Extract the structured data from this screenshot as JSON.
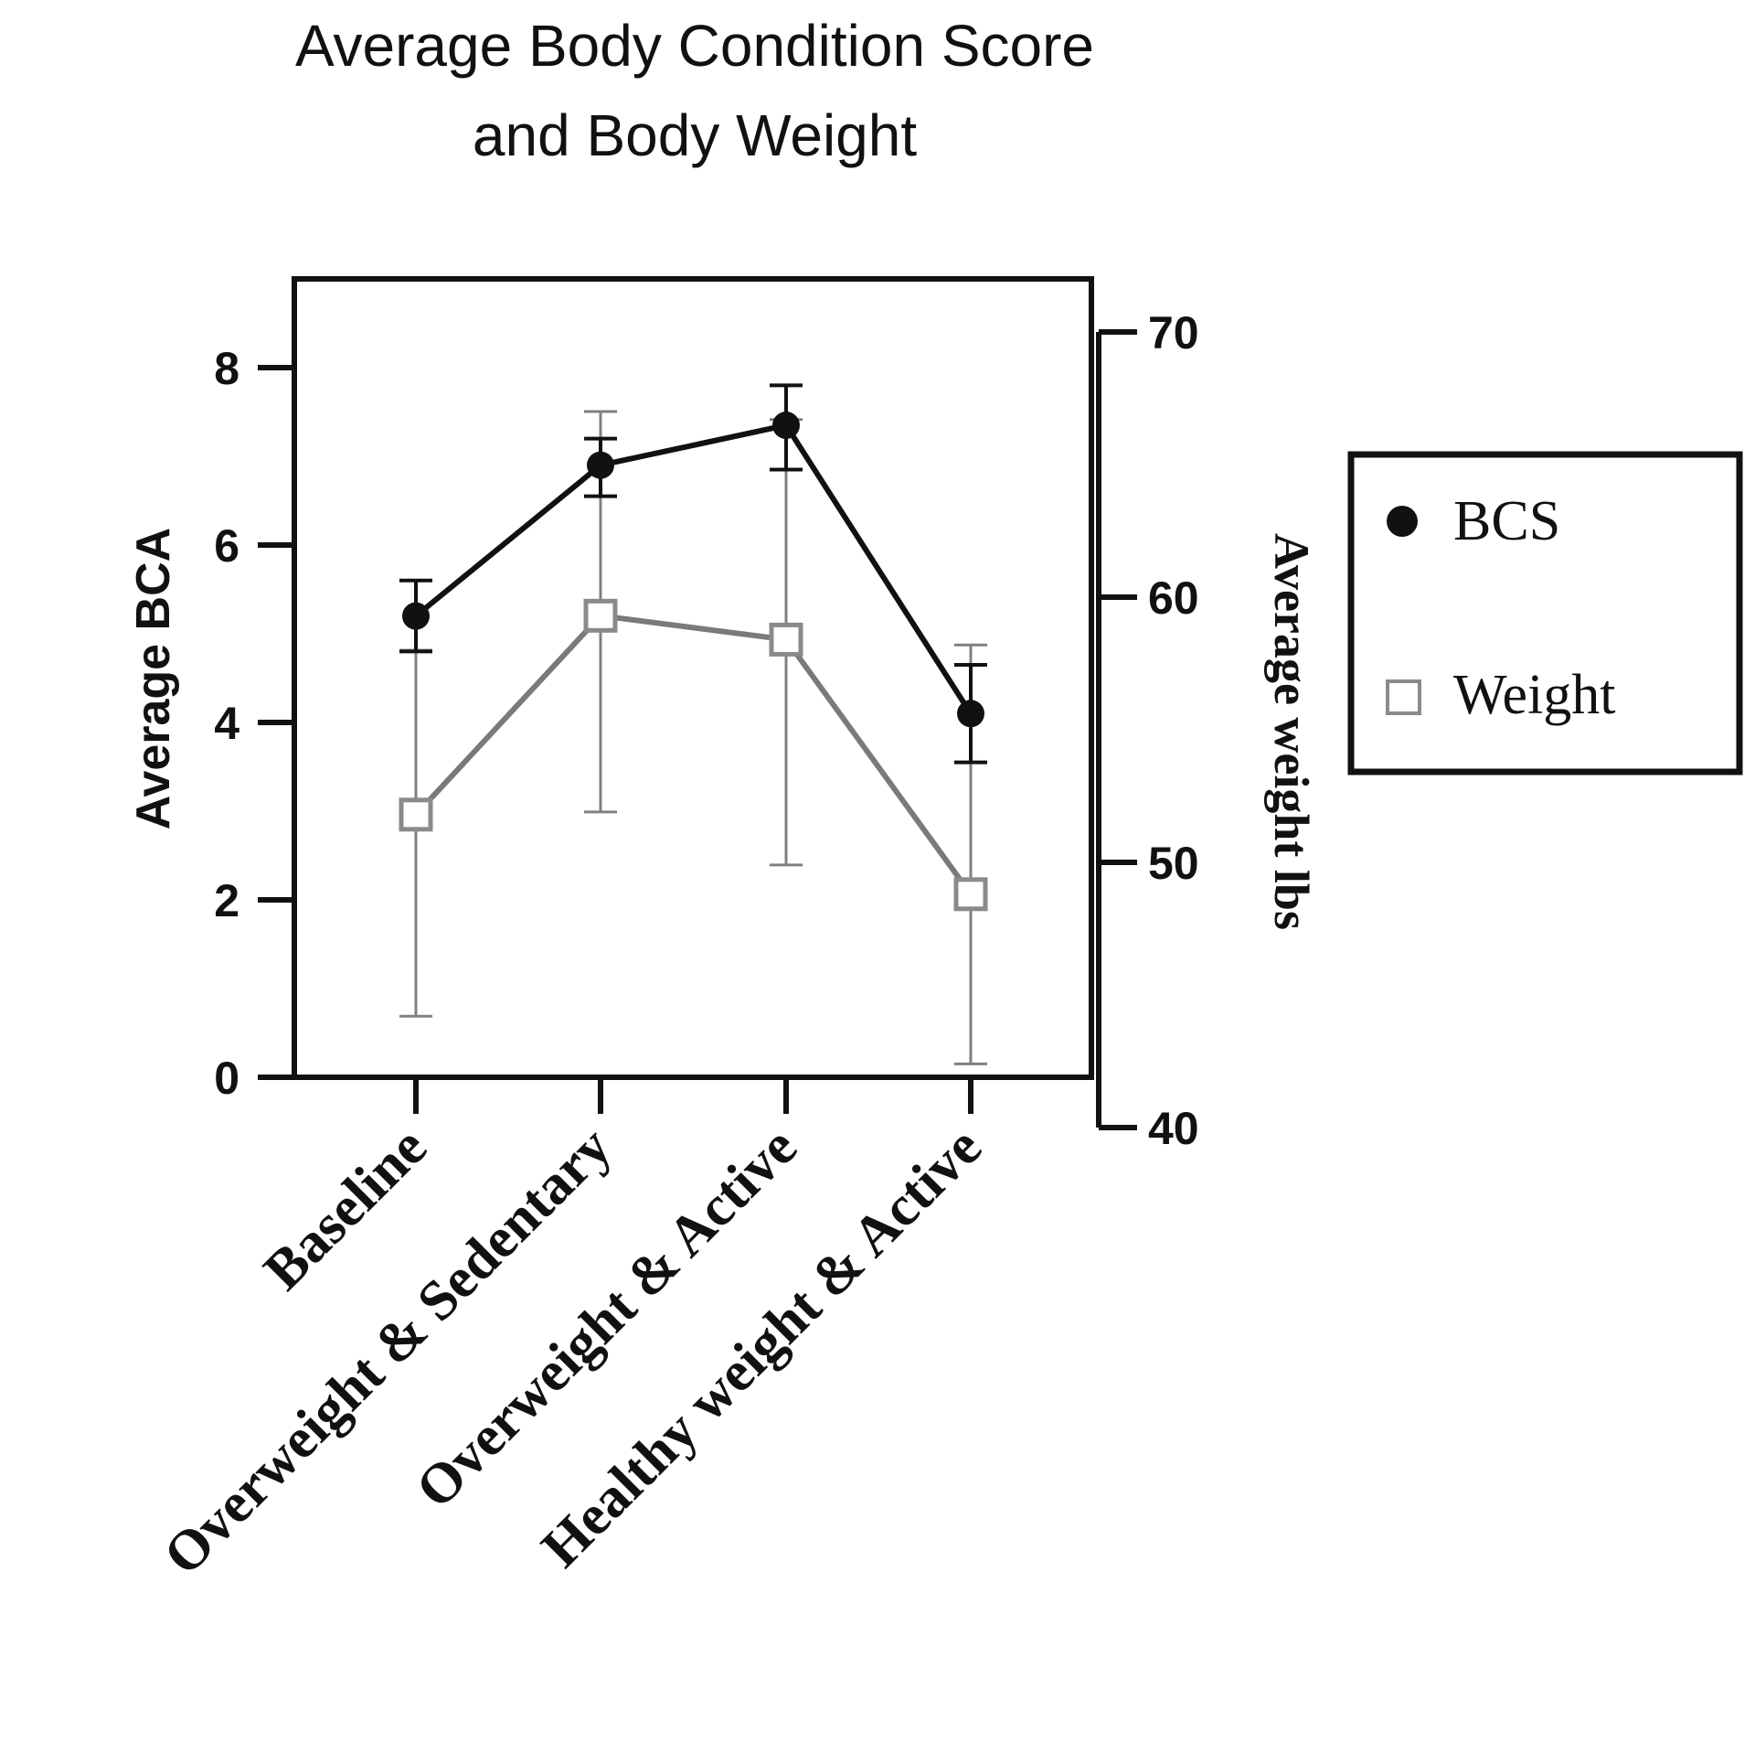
{
  "chart_data": {
    "type": "line",
    "title_lines": [
      "Average Body Condition Score",
      "and Body Weight"
    ],
    "categories": [
      "Baseline",
      "Overweight & Sedentary",
      "Overweight & Active",
      "Healthy weight & Active"
    ],
    "ylabel": "Average BCA",
    "ylim": [
      0,
      9
    ],
    "yticks": [
      0,
      2,
      4,
      6,
      8
    ],
    "y2label": "Average weight lbs",
    "y2lim": [
      40,
      70
    ],
    "y2ticks": [
      40,
      50,
      60,
      70
    ],
    "series": [
      {
        "name": "BCS",
        "axis": "left",
        "marker": "filled-circle",
        "color": "#111111",
        "values": [
          5.2,
          6.9,
          7.35,
          4.1
        ],
        "err_low": [
          4.8,
          6.55,
          6.85,
          3.55
        ],
        "err_high": [
          5.6,
          7.2,
          7.8,
          4.65
        ]
      },
      {
        "name": "Weight",
        "axis": "right",
        "marker": "open-square",
        "color": "#7a7a7a",
        "values": [
          51.8,
          59.3,
          58.4,
          48.8
        ],
        "err_low": [
          44.2,
          51.9,
          49.9,
          42.4
        ],
        "err_high": [
          58.0,
          67.0,
          66.7,
          58.2
        ]
      }
    ],
    "legend": [
      "BCS",
      "Weight"
    ],
    "legend_position": "right",
    "grid": false
  }
}
